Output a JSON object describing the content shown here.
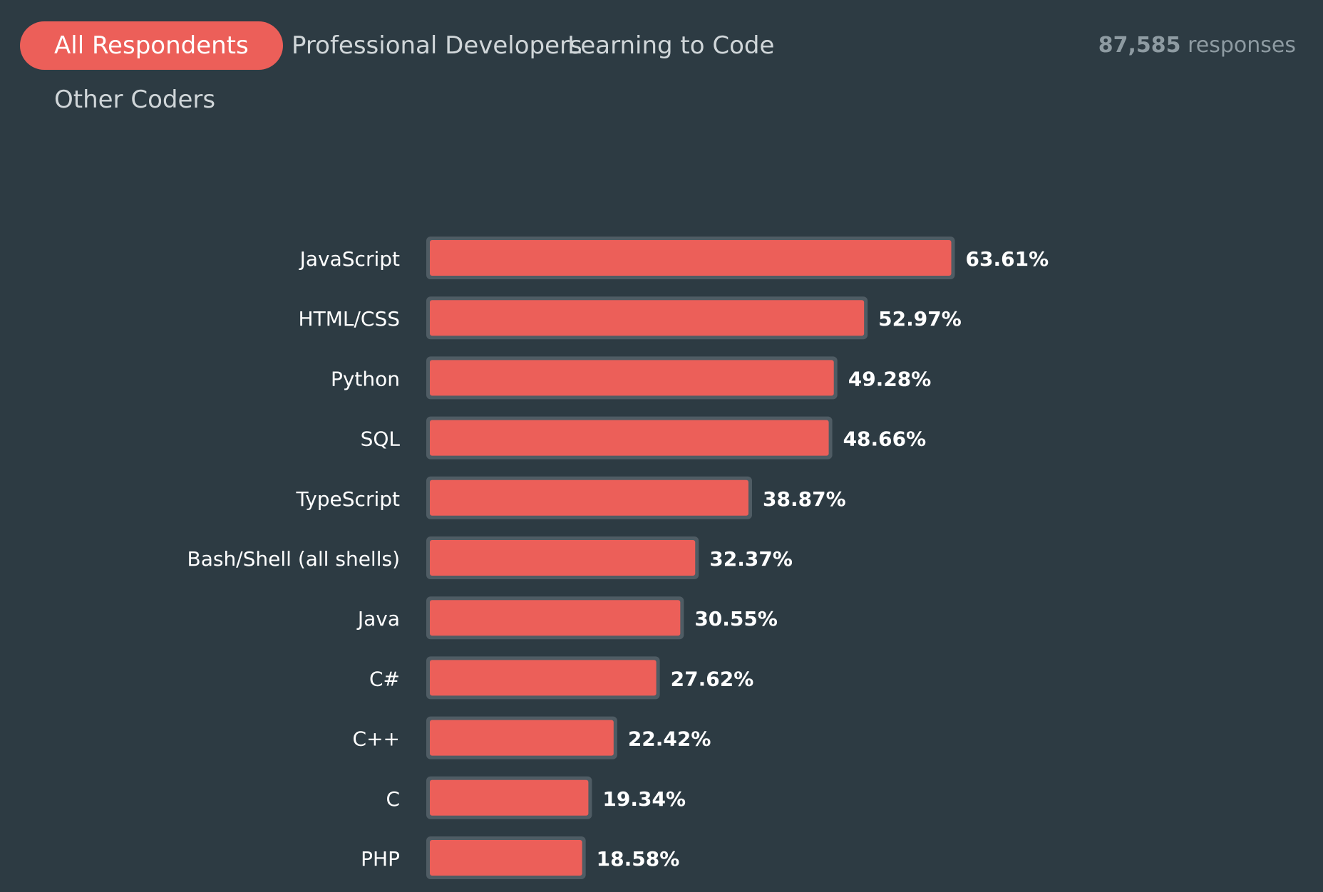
{
  "tabs": [
    {
      "label": "All Respondents",
      "active": true
    },
    {
      "label": "Professional Developers",
      "active": false
    },
    {
      "label": "Learning to Code",
      "active": false
    },
    {
      "label": "Other Coders",
      "active": false
    }
  ],
  "responses": {
    "count": "87,585",
    "label": "responses"
  },
  "colors": {
    "background": "#2d3b43",
    "bar_fill": "#ec5f59",
    "bar_outline": "#4f5c64",
    "active_tab": "#ec5f59"
  },
  "chart_data": {
    "type": "bar",
    "orientation": "horizontal",
    "categories": [
      "JavaScript",
      "HTML/CSS",
      "Python",
      "SQL",
      "TypeScript",
      "Bash/Shell (all shells)",
      "Java",
      "C#",
      "C++",
      "C",
      "PHP"
    ],
    "values": [
      63.61,
      52.97,
      49.28,
      48.66,
      38.87,
      32.37,
      30.55,
      27.62,
      22.42,
      19.34,
      18.58
    ],
    "value_labels": [
      "63.61%",
      "52.97%",
      "49.28%",
      "48.66%",
      "38.87%",
      "32.37%",
      "30.55%",
      "27.62%",
      "22.42%",
      "19.34%",
      "18.58%"
    ],
    "value_unit": "%",
    "xlim": [
      0,
      100
    ],
    "grid": false,
    "legend": "none"
  }
}
